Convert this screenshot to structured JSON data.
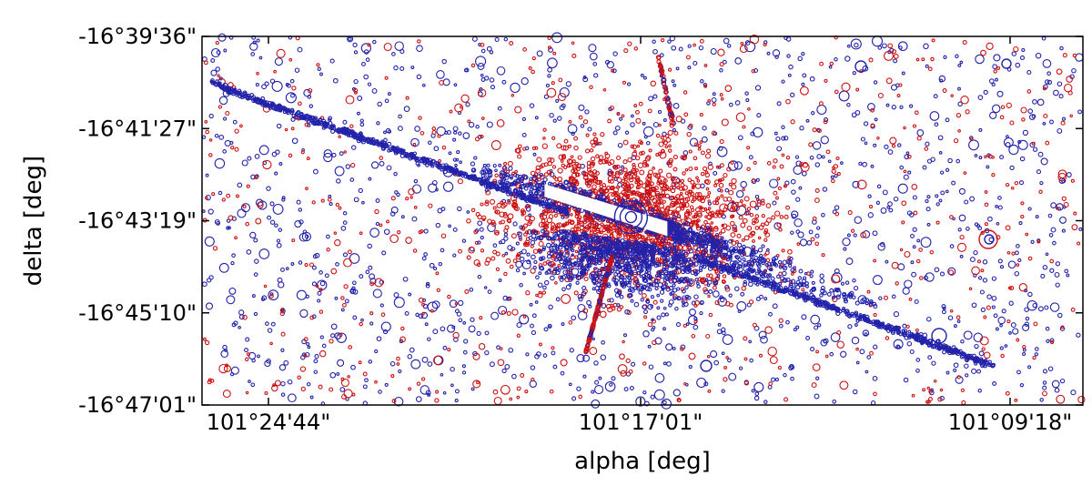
{
  "chart_data": {
    "type": "scatter",
    "xlabel": "alpha [deg]",
    "ylabel": "delta [deg]",
    "x_ticks": [
      "101°24'44\"",
      "101°17'01\"",
      "101°09'18\""
    ],
    "y_ticks": [
      "-16°39'36\"",
      "-16°41'27\"",
      "-16°43'19\"",
      "-16°45'10\"",
      "-16°47'01\""
    ],
    "x_axis_direction": "decreasing to the right",
    "grid": false,
    "legend": "none",
    "marker": "hollow circles, varying size",
    "series": [
      {
        "color": "#2222aa",
        "note": "dense field sources plus a long diagonal trail and a diffraction pattern around a bright star at center"
      },
      {
        "color": "#cc1111",
        "note": "sources concentrated near the bright star, plus scattered field sources"
      }
    ],
    "features": {
      "bright_star": {
        "x_deg": 101.2836,
        "y_deg": -16.7206
      },
      "diagonal_trail": {
        "x_deg": [
          101.415,
          101.17
        ],
        "y_deg": [
          -16.6758,
          -16.7704
        ]
      }
    },
    "xlim_deg": [
      101.418,
      101.142
    ],
    "ylim_deg": [
      -16.7836,
      -16.66
    ]
  }
}
